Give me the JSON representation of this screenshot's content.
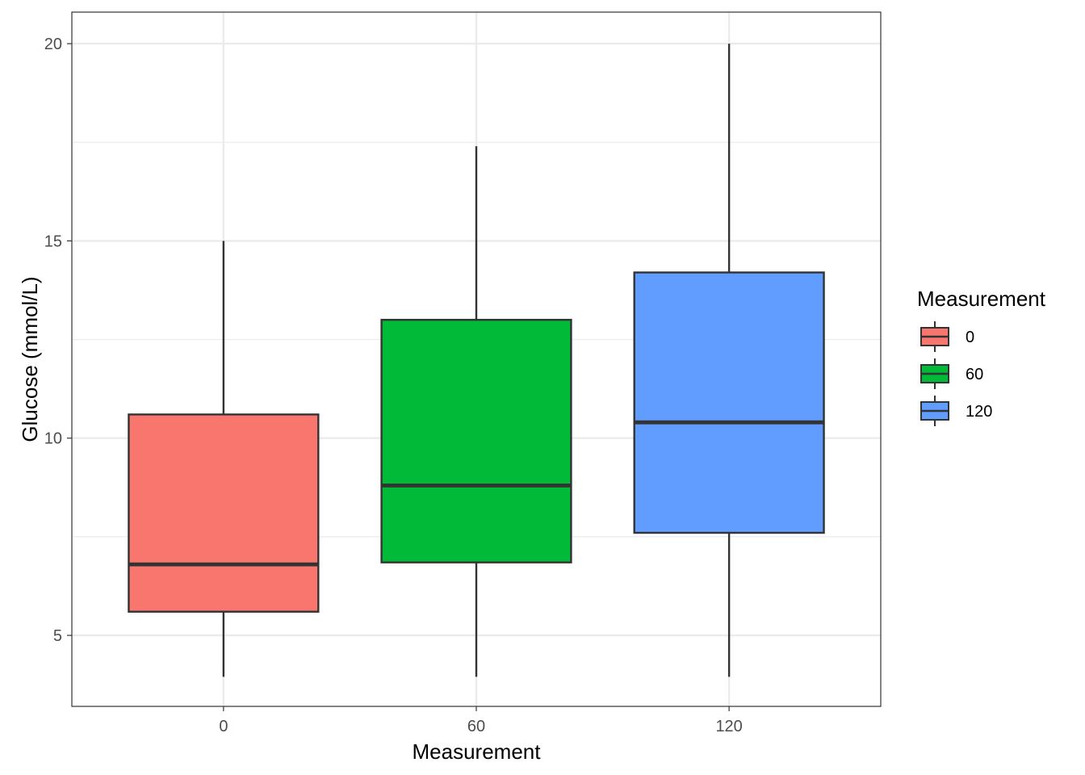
{
  "chart_data": {
    "type": "box",
    "xlabel": "Measurement",
    "ylabel": "Glucose (mmol/L)",
    "ylim": [
      3.2,
      20.8
    ],
    "y_ticks": [
      5,
      10,
      15,
      20
    ],
    "y_tick_labels": [
      "5",
      "10",
      "15",
      "20"
    ],
    "grid": true,
    "categories": [
      "0",
      "60",
      "120"
    ],
    "boxes": [
      {
        "category": "0",
        "min": 3.95,
        "q1": 5.6,
        "median": 6.8,
        "q3": 10.6,
        "max": 15.0
      },
      {
        "category": "60",
        "min": 3.95,
        "q1": 6.85,
        "median": 8.8,
        "q3": 13.0,
        "max": 17.4
      },
      {
        "category": "120",
        "min": 3.95,
        "q1": 7.6,
        "median": 10.4,
        "q3": 14.2,
        "max": 20.0
      }
    ],
    "colors": {
      "0": "#F8766D",
      "60": "#00BA38",
      "120": "#619CFF"
    },
    "legend": {
      "title": "Measurement",
      "position": "right",
      "entries": [
        "0",
        "60",
        "120"
      ]
    }
  }
}
